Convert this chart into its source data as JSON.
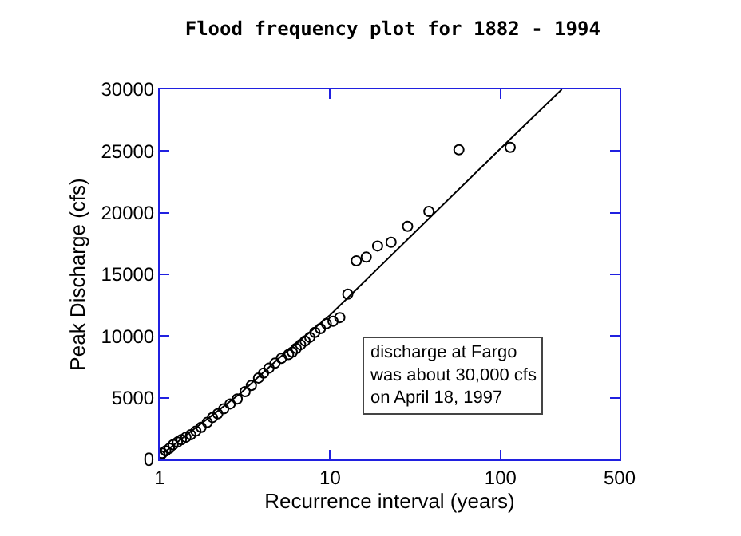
{
  "chart_data": {
    "type": "scatter",
    "title": "Flood frequency plot for 1882 - 1994",
    "xlabel": "Recurrence interval (years)",
    "ylabel": "Peak Discharge (cfs)",
    "log": "x",
    "xlim": [
      1,
      500
    ],
    "xticks": [
      1,
      10,
      100,
      500
    ],
    "ylim": [
      0,
      30000
    ],
    "yticks": [
      0,
      5000,
      10000,
      15000,
      20000,
      25000,
      30000
    ],
    "grid": false,
    "marker": "circle",
    "series": [
      {
        "type": "scatter",
        "color": "#000000",
        "x": [
          114,
          57,
          38,
          28.5,
          22.8,
          19,
          16.3,
          14.25,
          12.7,
          11.4,
          10.4,
          9.5,
          8.77,
          8.14,
          7.6,
          7.13,
          6.71,
          6.33,
          6,
          5.7,
          5.18,
          4.75,
          4.38,
          4.07,
          3.8,
          3.45,
          3.17,
          2.85,
          2.59,
          2.375,
          2.19,
          2.04,
          1.9,
          1.75,
          1.63,
          1.52,
          1.425,
          1.34,
          1.27,
          1.2,
          1.14,
          1.086,
          1.036,
          1.009
        ],
        "values": [
          25300,
          25100,
          20100,
          18900,
          17600,
          17300,
          16400,
          16100,
          13400,
          11500,
          11200,
          11000,
          10600,
          10300,
          9900,
          9600,
          9300,
          9000,
          8700,
          8500,
          8200,
          7800,
          7400,
          7000,
          6600,
          6000,
          5500,
          4900,
          4500,
          4100,
          3700,
          3400,
          3000,
          2600,
          2300,
          2000,
          1800,
          1600,
          1400,
          1200,
          900,
          700,
          500,
          300
        ]
      },
      {
        "type": "line",
        "color": "#000000",
        "marker": "none",
        "x": [
          1.05,
          1.5,
          2,
          3,
          5,
          10,
          100,
          229
        ],
        "values": [
          500,
          2200,
          3500,
          5400,
          8200,
          11700,
          25200,
          30000
        ]
      }
    ],
    "annotations": [
      "discharge at Fargo\nwas about 30,000 cfs\non April 18, 1997"
    ]
  }
}
